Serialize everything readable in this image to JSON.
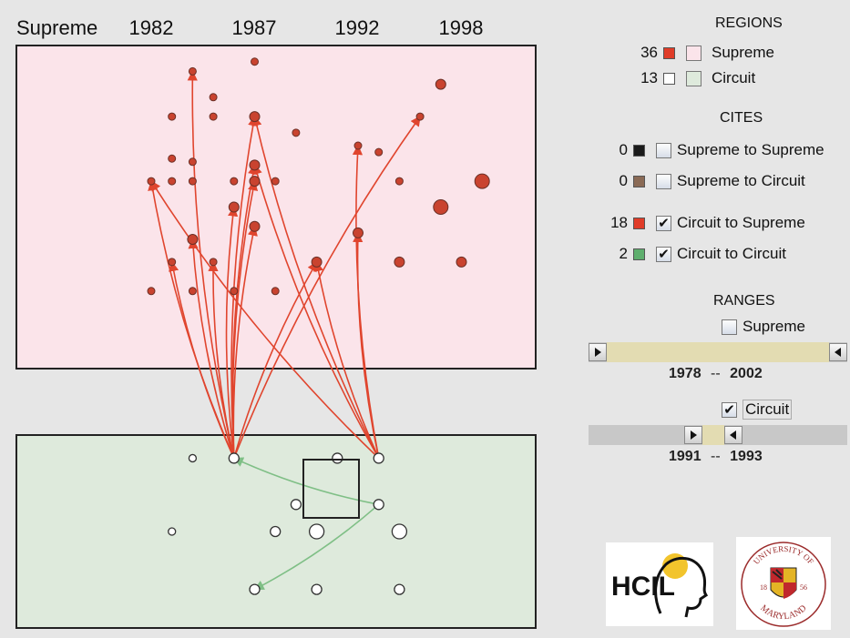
{
  "timeline": {
    "title": "Supreme",
    "years": [
      "1982",
      "1987",
      "1992",
      "1998"
    ]
  },
  "regions": {
    "heading": "REGIONS",
    "items": [
      {
        "count": "36",
        "label": "Supreme",
        "swatch": "#e03c28",
        "checked": false
      },
      {
        "count": "13",
        "label": "Circuit",
        "swatch": "#ffffff",
        "checked": false
      }
    ]
  },
  "cites": {
    "heading": "CITES",
    "items": [
      {
        "count": "0",
        "label": "Supreme to Supreme",
        "swatch": "#1a1a1a",
        "checked": false
      },
      {
        "count": "0",
        "label": "Supreme to Circuit",
        "swatch": "#8a6a55",
        "checked": false
      },
      {
        "count": "18",
        "label": "Circuit to Supreme",
        "swatch": "#e03c28",
        "checked": true
      },
      {
        "count": "2",
        "label": "Circuit to Circuit",
        "swatch": "#5faf6e",
        "checked": true
      }
    ]
  },
  "ranges": {
    "heading": "RANGES",
    "supreme": {
      "label": "Supreme",
      "checked": false,
      "start": "1978",
      "end": "2002",
      "sep": "--",
      "fill_start": 0.0,
      "fill_end": 1.0
    },
    "circuit": {
      "label": "Circuit",
      "checked": true,
      "start": "1991",
      "end": "1993",
      "sep": "--",
      "fill_start": 0.43,
      "fill_end": 0.53
    }
  },
  "logos": {
    "hcil": "HCIL",
    "umd_top": "UNIVERSITY OF",
    "umd_bottom": "MARYLAND",
    "umd_year_left": "18",
    "umd_year_right": "56"
  },
  "colors": {
    "supreme_bg": "#fbe4ea",
    "circuit_bg": "#deeadc",
    "cite_red": "#e0452e",
    "cite_green": "#7fbf86",
    "node_fill": "#c9432f"
  },
  "map": {
    "supreme_nodes": [
      {
        "x": 1984,
        "y": 92,
        "r": 1
      },
      {
        "x": 1987,
        "y": 95,
        "r": 1
      },
      {
        "x": 1996,
        "y": 88,
        "r": 2
      },
      {
        "x": 1985,
        "y": 84,
        "r": 1
      },
      {
        "x": 1983,
        "y": 78,
        "r": 1
      },
      {
        "x": 1985,
        "y": 78,
        "r": 1
      },
      {
        "x": 1987,
        "y": 78,
        "r": 2
      },
      {
        "x": 1995,
        "y": 78,
        "r": 1
      },
      {
        "x": 1989,
        "y": 73,
        "r": 1
      },
      {
        "x": 1992,
        "y": 69,
        "r": 1
      },
      {
        "x": 1993,
        "y": 67,
        "r": 1
      },
      {
        "x": 1983,
        "y": 65,
        "r": 1
      },
      {
        "x": 1984,
        "y": 64,
        "r": 1
      },
      {
        "x": 1987,
        "y": 63,
        "r": 2
      },
      {
        "x": 1982,
        "y": 58,
        "r": 1
      },
      {
        "x": 1983,
        "y": 58,
        "r": 1
      },
      {
        "x": 1984,
        "y": 58,
        "r": 1
      },
      {
        "x": 1986,
        "y": 58,
        "r": 1
      },
      {
        "x": 1987,
        "y": 58,
        "r": 2
      },
      {
        "x": 1988,
        "y": 58,
        "r": 1
      },
      {
        "x": 1994,
        "y": 58,
        "r": 1
      },
      {
        "x": 1998,
        "y": 58,
        "r": 3
      },
      {
        "x": 1986,
        "y": 50,
        "r": 2
      },
      {
        "x": 1996,
        "y": 50,
        "r": 3
      },
      {
        "x": 1987,
        "y": 44,
        "r": 2
      },
      {
        "x": 1992,
        "y": 42,
        "r": 2
      },
      {
        "x": 1984,
        "y": 40,
        "r": 2
      },
      {
        "x": 1983,
        "y": 33,
        "r": 1
      },
      {
        "x": 1985,
        "y": 33,
        "r": 1
      },
      {
        "x": 1990,
        "y": 33,
        "r": 2
      },
      {
        "x": 1994,
        "y": 33,
        "r": 2
      },
      {
        "x": 1997,
        "y": 33,
        "r": 2
      },
      {
        "x": 1982,
        "y": 24,
        "r": 1
      },
      {
        "x": 1984,
        "y": 24,
        "r": 1
      },
      {
        "x": 1986,
        "y": 24,
        "r": 1
      },
      {
        "x": 1988,
        "y": 24,
        "r": 1
      }
    ],
    "circuit_nodes": [
      {
        "x": 1984,
        "y": 88,
        "r": 1
      },
      {
        "x": 1986,
        "y": 88,
        "r": 2
      },
      {
        "x": 1991,
        "y": 88,
        "r": 2
      },
      {
        "x": 1993,
        "y": 88,
        "r": 2
      },
      {
        "x": 1989,
        "y": 64,
        "r": 2
      },
      {
        "x": 1993,
        "y": 64,
        "r": 2
      },
      {
        "x": 1983,
        "y": 50,
        "r": 1
      },
      {
        "x": 1988,
        "y": 50,
        "r": 2
      },
      {
        "x": 1990,
        "y": 50,
        "r": 3
      },
      {
        "x": 1994,
        "y": 50,
        "r": 3
      },
      {
        "x": 1987,
        "y": 20,
        "r": 2
      },
      {
        "x": 1990,
        "y": 20,
        "r": 2
      },
      {
        "x": 1994,
        "y": 20,
        "r": 2
      }
    ],
    "red_edges": [
      {
        "from": 1,
        "to": 0
      },
      {
        "from": 1,
        "to": 6
      },
      {
        "from": 1,
        "to": 7
      },
      {
        "from": 1,
        "to": 14
      },
      {
        "from": 1,
        "to": 18
      },
      {
        "from": 1,
        "to": 22
      },
      {
        "from": 1,
        "to": 24
      },
      {
        "from": 1,
        "to": 26
      },
      {
        "from": 1,
        "to": 27
      },
      {
        "from": 1,
        "to": 28
      },
      {
        "from": 1,
        "to": 29
      },
      {
        "from": 1,
        "to": 13
      },
      {
        "from": 3,
        "to": 9
      },
      {
        "from": 3,
        "to": 25
      },
      {
        "from": 3,
        "to": 14
      },
      {
        "from": 3,
        "to": 6
      },
      {
        "from": 3,
        "to": 13
      },
      {
        "from": 3,
        "to": 29
      }
    ],
    "green_edges": [
      {
        "from": 5,
        "to": 1
      },
      {
        "from": 5,
        "to": 10
      }
    ]
  }
}
